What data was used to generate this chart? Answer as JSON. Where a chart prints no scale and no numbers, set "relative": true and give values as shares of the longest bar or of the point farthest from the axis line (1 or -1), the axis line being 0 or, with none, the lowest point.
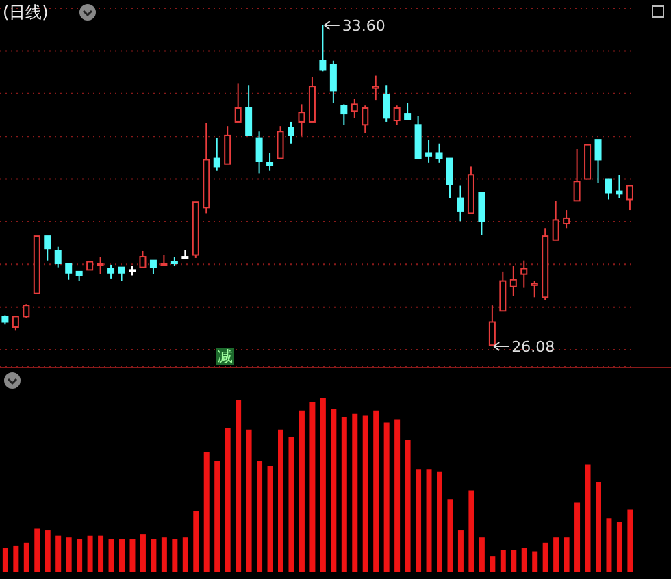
{
  "chart_data": [
    {
      "type": "candlestick",
      "title": "(日线)",
      "categories": [
        null,
        null,
        null,
        null,
        null,
        null,
        null,
        null,
        null,
        null,
        null,
        null,
        null,
        null,
        null,
        null,
        null,
        null,
        null,
        null,
        null,
        null,
        null,
        null,
        null,
        null,
        null,
        null,
        null,
        null,
        null,
        null,
        null,
        null,
        null,
        null,
        null,
        null,
        null,
        null,
        null,
        null,
        null,
        null,
        null,
        null,
        null,
        null,
        null,
        null,
        null,
        null,
        null,
        null,
        null,
        null,
        null,
        null,
        null,
        null
      ],
      "ohlc": [
        [
          26.78,
          26.81,
          26.59,
          26.65
        ],
        [
          26.53,
          26.78,
          26.46,
          26.78
        ],
        [
          26.78,
          27.07,
          26.75,
          27.04
        ],
        [
          27.32,
          28.66,
          27.32,
          28.66
        ],
        [
          28.66,
          28.66,
          28.09,
          28.37
        ],
        [
          28.31,
          28.41,
          27.93,
          28.02
        ],
        [
          28.02,
          28.02,
          27.64,
          27.8
        ],
        [
          27.83,
          27.83,
          27.61,
          27.74
        ],
        [
          27.87,
          28.06,
          27.87,
          28.06
        ],
        [
          27.99,
          28.18,
          27.77,
          28.02
        ],
        [
          27.9,
          27.99,
          27.67,
          27.8
        ],
        [
          27.93,
          27.93,
          27.61,
          27.8
        ],
        [
          27.87,
          27.96,
          27.74,
          27.87
        ],
        [
          27.93,
          28.31,
          27.93,
          28.18
        ],
        [
          28.09,
          28.09,
          27.77,
          27.93
        ],
        [
          27.99,
          28.22,
          27.99,
          28.02
        ],
        [
          28.06,
          28.18,
          27.96,
          28.02
        ],
        [
          28.18,
          28.34,
          28.18,
          28.18
        ],
        [
          28.22,
          29.46,
          28.15,
          29.46
        ],
        [
          29.33,
          31.31,
          29.2,
          30.45
        ],
        [
          30.48,
          30.96,
          30.19,
          30.29
        ],
        [
          30.35,
          31.24,
          30.35,
          31.02
        ],
        [
          31.34,
          32.23,
          31.34,
          31.66
        ],
        [
          31.66,
          32.2,
          31.02,
          31.02
        ],
        [
          30.96,
          31.11,
          30.13,
          30.41
        ],
        [
          30.38,
          30.61,
          30.19,
          30.32
        ],
        [
          30.48,
          31.24,
          30.48,
          31.11
        ],
        [
          31.21,
          31.34,
          30.83,
          31.02
        ],
        [
          31.34,
          31.75,
          31.02,
          31.56
        ],
        [
          31.34,
          32.39,
          31.34,
          32.17
        ],
        [
          32.77,
          33.6,
          32.52,
          32.55
        ],
        [
          32.68,
          32.77,
          31.78,
          32.07
        ],
        [
          31.72,
          31.75,
          31.27,
          31.53
        ],
        [
          31.59,
          31.88,
          31.43,
          31.75
        ],
        [
          31.27,
          31.72,
          31.08,
          31.66
        ],
        [
          32.13,
          32.42,
          31.85,
          32.17
        ],
        [
          31.98,
          32.2,
          31.34,
          31.43
        ],
        [
          31.37,
          31.72,
          31.27,
          31.66
        ],
        [
          31.53,
          31.78,
          31.4,
          31.4
        ],
        [
          31.27,
          31.47,
          30.48,
          30.48
        ],
        [
          30.61,
          30.92,
          30.38,
          30.54
        ],
        [
          30.61,
          30.83,
          30.38,
          30.48
        ],
        [
          30.48,
          30.48,
          29.55,
          29.87
        ],
        [
          29.55,
          29.84,
          29.01,
          29.24
        ],
        [
          29.2,
          30.29,
          29.2,
          30.1
        ],
        [
          29.68,
          29.68,
          28.69,
          29.01
        ],
        [
          26.11,
          27.04,
          26.08,
          26.65
        ],
        [
          26.91,
          27.83,
          26.91,
          27.61
        ],
        [
          27.48,
          27.96,
          27.26,
          27.64
        ],
        [
          27.77,
          28.09,
          27.45,
          27.9
        ],
        [
          27.51,
          27.61,
          27.23,
          27.55
        ],
        [
          27.23,
          28.85,
          27.16,
          28.66
        ],
        [
          28.57,
          29.49,
          28.57,
          29.04
        ],
        [
          28.95,
          29.27,
          28.85,
          29.08
        ],
        [
          29.49,
          30.7,
          29.49,
          29.94
        ],
        [
          30.0,
          30.8,
          30.0,
          30.8
        ],
        [
          30.92,
          30.92,
          29.9,
          30.45
        ],
        [
          30.0,
          30.0,
          29.52,
          29.68
        ],
        [
          29.71,
          30.1,
          29.55,
          29.65
        ],
        [
          29.52,
          29.84,
          29.27,
          29.84
        ]
      ],
      "colors": [
        "#54fcfc",
        "#e83c3c",
        "#e83c3c",
        "#e83c3c",
        "#54fcfc",
        "#54fcfc",
        "#54fcfc",
        "#54fcfc",
        "#e83c3c",
        "#e83c3c",
        "#54fcfc",
        "#54fcfc",
        "#ffffff",
        "#e83c3c",
        "#54fcfc",
        "#e83c3c",
        "#54fcfc",
        "#ffffff",
        "#e83c3c",
        "#e83c3c",
        "#54fcfc",
        "#e83c3c",
        "#e83c3c",
        "#54fcfc",
        "#54fcfc",
        "#54fcfc",
        "#e83c3c",
        "#54fcfc",
        "#e83c3c",
        "#e83c3c",
        "#54fcfc",
        "#54fcfc",
        "#54fcfc",
        "#e83c3c",
        "#e83c3c",
        "#e83c3c",
        "#54fcfc",
        "#e83c3c",
        "#54fcfc",
        "#54fcfc",
        "#54fcfc",
        "#54fcfc",
        "#54fcfc",
        "#54fcfc",
        "#e83c3c",
        "#54fcfc",
        "#e83c3c",
        "#e83c3c",
        "#e83c3c",
        "#e83c3c",
        "#e83c3c",
        "#e83c3c",
        "#e83c3c",
        "#e83c3c",
        "#e83c3c",
        "#e83c3c",
        "#54fcfc",
        "#54fcfc",
        "#54fcfc",
        "#e83c3c"
      ],
      "ylim": [
        25.6,
        34.0
      ],
      "yticks": [
        {
          "value": 26,
          "label": null
        },
        {
          "value": 27,
          "label": null
        },
        {
          "value": 28,
          "label": null
        },
        {
          "value": 29,
          "label": null
        },
        {
          "value": 30,
          "label": null
        },
        {
          "value": 31,
          "label": null
        },
        {
          "value": 32,
          "label": null
        },
        {
          "value": 33,
          "label": null
        }
      ],
      "grid": "y",
      "tick_labels": false,
      "annotations": [
        "33.60",
        "26.08",
        "减"
      ]
    },
    {
      "type": "bar",
      "relative": true,
      "color": "#f01414",
      "categories": [
        null,
        null,
        null,
        null,
        null,
        null,
        null,
        null,
        null,
        null,
        null,
        null,
        null,
        null,
        null,
        null,
        null,
        null,
        null,
        null,
        null,
        null,
        null,
        null,
        null,
        null,
        null,
        null,
        null,
        null,
        null,
        null,
        null,
        null,
        null,
        null,
        null,
        null,
        null,
        null,
        null,
        null,
        null,
        null,
        null,
        null,
        null,
        null,
        null,
        null,
        null,
        null,
        null,
        null,
        null,
        null,
        null,
        null,
        null,
        null
      ],
      "values": [
        0.14,
        0.15,
        0.17,
        0.25,
        0.24,
        0.21,
        0.2,
        0.19,
        0.21,
        0.21,
        0.19,
        0.19,
        0.19,
        0.22,
        0.19,
        0.2,
        0.19,
        0.2,
        0.35,
        0.69,
        0.64,
        0.83,
        0.99,
        0.82,
        0.64,
        0.61,
        0.82,
        0.78,
        0.93,
        0.98,
        1,
        0.94,
        0.89,
        0.91,
        0.9,
        0.93,
        0.86,
        0.88,
        0.76,
        0.59,
        0.59,
        0.58,
        0.42,
        0.24,
        0.47,
        0.2,
        0.09,
        0.13,
        0.13,
        0.14,
        0.12,
        0.17,
        0.2,
        0.2,
        0.4,
        0.62,
        0.52,
        0.31,
        0.29,
        0.36
      ]
    }
  ]
}
